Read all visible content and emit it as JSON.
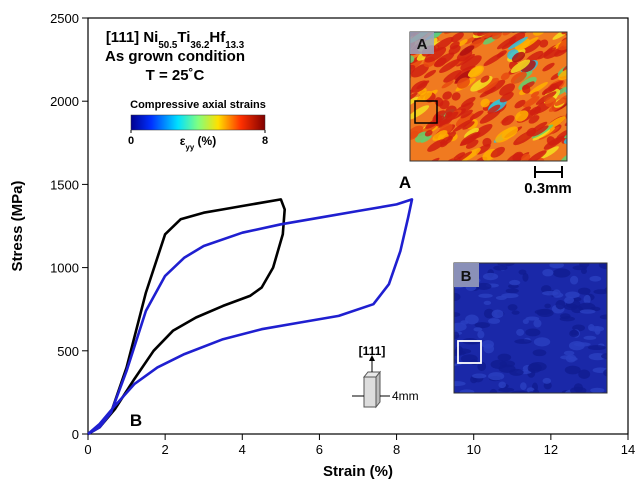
{
  "chart_data": {
    "type": "line",
    "title": [
      {
        "text": "[111] Ni"
      },
      {
        "text": "50.5",
        "sub": true
      },
      {
        "text": "Ti"
      },
      {
        "text": "36.2",
        "sub": true
      },
      {
        "text": "Hf"
      },
      {
        "text": "13.3",
        "sub": true
      }
    ],
    "subtitle": [
      "As grown condition",
      "T = 25˚C"
    ],
    "x_label": "Strain (%)",
    "y_label": "Stress (MPa)",
    "xlim": [
      0,
      14
    ],
    "xticks": [
      0,
      2,
      4,
      6,
      8,
      10,
      12,
      14
    ],
    "ylim": [
      0,
      2500
    ],
    "yticks": [
      0,
      500,
      1000,
      1500,
      2000,
      2500
    ],
    "series": [
      {
        "color": "#000000",
        "x": [
          0,
          0.3,
          0.6,
          1,
          1.5,
          2,
          2.4,
          3,
          3.5,
          4,
          4.5,
          5,
          5.1,
          5.05,
          4.8,
          4.5,
          4.2,
          3.5,
          2.8,
          2.2,
          1.7,
          1.2,
          0.7,
          0.3,
          0
        ],
        "values": [
          0,
          40,
          130,
          400,
          850,
          1200,
          1290,
          1330,
          1350,
          1370,
          1390,
          1410,
          1350,
          1200,
          1000,
          880,
          830,
          770,
          700,
          620,
          500,
          330,
          150,
          40,
          0
        ]
      },
      {
        "color": "#1f1fd0",
        "x": [
          0,
          0.3,
          0.6,
          1,
          1.5,
          2,
          2.5,
          3,
          4,
          5,
          6,
          7,
          8,
          8.4,
          8.3,
          8.1,
          7.8,
          7.4,
          6.5,
          5.5,
          4.5,
          3.5,
          2.5,
          1.8,
          1.2,
          0.7,
          0.3,
          0
        ],
        "values": [
          0,
          40,
          130,
          380,
          740,
          950,
          1060,
          1130,
          1210,
          1260,
          1300,
          1340,
          1380,
          1410,
          1300,
          1100,
          900,
          780,
          710,
          670,
          630,
          570,
          480,
          400,
          300,
          170,
          60,
          0
        ]
      }
    ],
    "annotations": [
      "A",
      "B"
    ],
    "colorbar": {
      "label": "Compressive axial strains",
      "ticks": [
        0,
        8
      ],
      "axis_label": [
        {
          "text": "ε"
        },
        {
          "text": "yy",
          "sub": true
        },
        {
          "text": " (%)"
        }
      ]
    },
    "insets": [
      {
        "label": "A",
        "scale": "0.3mm"
      },
      {
        "label": "B"
      }
    ],
    "specimen": {
      "direction": "[111]",
      "size": "4mm"
    }
  }
}
